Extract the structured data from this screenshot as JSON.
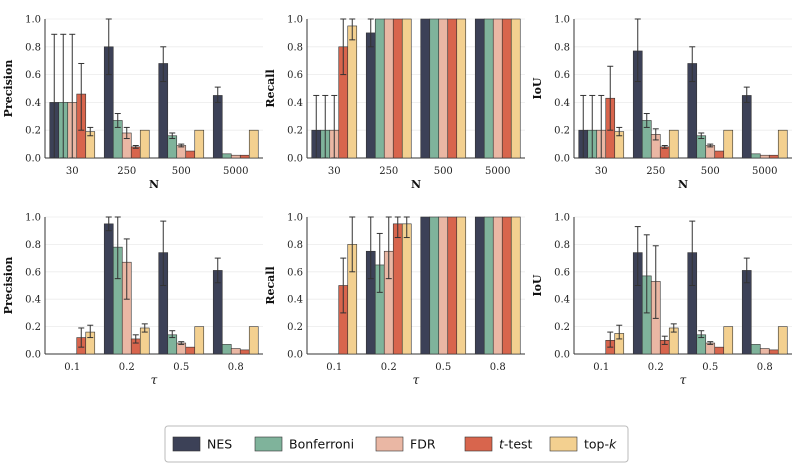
{
  "colors": {
    "NES": "#3c4157",
    "Bonferroni": "#7fb39b",
    "FDR": "#eab7a4",
    "t-test": "#d8654d",
    "top-k": "#f3d090"
  },
  "legend": [
    {
      "key": "NES",
      "label": "NES"
    },
    {
      "key": "Bonferroni",
      "label": "Bonferroni"
    },
    {
      "key": "FDR",
      "label": "FDR"
    },
    {
      "key": "t-test",
      "label": "t",
      "suffix": "-test",
      "italic_prefix": true
    },
    {
      "key": "top-k",
      "label": "top-",
      "suffix": "k",
      "italic_suffix": true
    }
  ],
  "chart_data": [
    {
      "type": "bar",
      "ylabel": "Precision",
      "xlabel": "N",
      "categories": [
        "30",
        "250",
        "500",
        "5000"
      ],
      "ylim": [
        0,
        1
      ],
      "yticks": [
        "0.0",
        "0.2",
        "0.4",
        "0.6",
        "0.8",
        "1.0"
      ],
      "series": [
        {
          "name": "NES",
          "values": [
            0.4,
            0.8,
            0.68,
            0.45
          ],
          "err_low": [
            0.0,
            0.6,
            0.55,
            0.4
          ],
          "err_high": [
            0.89,
            1.0,
            0.8,
            0.51
          ]
        },
        {
          "name": "Bonferroni",
          "values": [
            0.4,
            0.27,
            0.16,
            0.03
          ],
          "err_low": [
            0.0,
            0.22,
            0.14,
            null
          ],
          "err_high": [
            0.89,
            0.32,
            0.18,
            null
          ]
        },
        {
          "name": "FDR",
          "values": [
            0.4,
            0.18,
            0.09,
            0.02
          ],
          "err_low": [
            0.0,
            0.14,
            0.08,
            null
          ],
          "err_high": [
            0.89,
            0.22,
            0.1,
            null
          ]
        },
        {
          "name": "t-test",
          "values": [
            0.46,
            0.08,
            0.05,
            0.02
          ],
          "err_low": [
            0.2,
            0.07,
            null,
            null
          ],
          "err_high": [
            0.68,
            0.09,
            null,
            null
          ]
        },
        {
          "name": "top-k",
          "values": [
            0.19,
            0.2,
            0.2,
            0.2
          ],
          "err_low": [
            0.16,
            null,
            null,
            null
          ],
          "err_high": [
            0.22,
            null,
            null,
            null
          ]
        }
      ]
    },
    {
      "type": "bar",
      "ylabel": "Recall",
      "xlabel": "N",
      "categories": [
        "30",
        "250",
        "500",
        "5000"
      ],
      "ylim": [
        0,
        1
      ],
      "yticks": [
        "0.0",
        "0.2",
        "0.4",
        "0.6",
        "0.8",
        "1.0"
      ],
      "series": [
        {
          "name": "NES",
          "values": [
            0.2,
            0.9,
            1.0,
            1.0
          ],
          "err_low": [
            0.0,
            0.8,
            null,
            null
          ],
          "err_high": [
            0.45,
            1.0,
            null,
            null
          ]
        },
        {
          "name": "Bonferroni",
          "values": [
            0.2,
            1.0,
            1.0,
            1.0
          ],
          "err_low": [
            0.0,
            null,
            null,
            null
          ],
          "err_high": [
            0.45,
            null,
            null,
            null
          ]
        },
        {
          "name": "FDR",
          "values": [
            0.2,
            1.0,
            1.0,
            1.0
          ],
          "err_low": [
            0.0,
            null,
            null,
            null
          ],
          "err_high": [
            0.45,
            null,
            null,
            null
          ]
        },
        {
          "name": "t-test",
          "values": [
            0.8,
            1.0,
            1.0,
            1.0
          ],
          "err_low": [
            0.6,
            null,
            null,
            null
          ],
          "err_high": [
            1.0,
            null,
            null,
            null
          ]
        },
        {
          "name": "top-k",
          "values": [
            0.95,
            1.0,
            1.0,
            1.0
          ],
          "err_low": [
            0.85,
            null,
            null,
            null
          ],
          "err_high": [
            1.0,
            null,
            null,
            null
          ]
        }
      ]
    },
    {
      "type": "bar",
      "ylabel": "IoU",
      "xlabel": "N",
      "categories": [
        "30",
        "250",
        "500",
        "5000"
      ],
      "ylim": [
        0,
        1
      ],
      "yticks": [
        "0.0",
        "0.2",
        "0.4",
        "0.6",
        "0.8",
        "1.0"
      ],
      "series": [
        {
          "name": "NES",
          "values": [
            0.2,
            0.77,
            0.68,
            0.45
          ],
          "err_low": [
            0.0,
            0.55,
            0.55,
            0.4
          ],
          "err_high": [
            0.45,
            1.0,
            0.8,
            0.51
          ]
        },
        {
          "name": "Bonferroni",
          "values": [
            0.2,
            0.27,
            0.16,
            0.03
          ],
          "err_low": [
            0.0,
            0.22,
            0.14,
            null
          ],
          "err_high": [
            0.45,
            0.32,
            0.18,
            null
          ]
        },
        {
          "name": "FDR",
          "values": [
            0.2,
            0.17,
            0.09,
            0.02
          ],
          "err_low": [
            0.0,
            0.13,
            0.08,
            null
          ],
          "err_high": [
            0.45,
            0.21,
            0.1,
            null
          ]
        },
        {
          "name": "t-test",
          "values": [
            0.43,
            0.08,
            0.05,
            0.02
          ],
          "err_low": [
            0.2,
            0.07,
            null,
            null
          ],
          "err_high": [
            0.66,
            0.09,
            null,
            null
          ]
        },
        {
          "name": "top-k",
          "values": [
            0.19,
            0.2,
            0.2,
            0.2
          ],
          "err_low": [
            0.16,
            null,
            null,
            null
          ],
          "err_high": [
            0.22,
            null,
            null,
            null
          ]
        }
      ]
    },
    {
      "type": "bar",
      "ylabel": "Precision",
      "xlabel": "τ",
      "categories": [
        "0.1",
        "0.2",
        "0.5",
        "0.8"
      ],
      "ylim": [
        0,
        1
      ],
      "yticks": [
        "0.0",
        "0.2",
        "0.4",
        "0.6",
        "0.8",
        "1.0"
      ],
      "series": [
        {
          "name": "NES",
          "values": [
            0.0,
            0.95,
            0.74,
            0.61
          ],
          "err_low": [
            null,
            0.9,
            0.5,
            0.52
          ],
          "err_high": [
            null,
            1.0,
            0.97,
            0.7
          ]
        },
        {
          "name": "Bonferroni",
          "values": [
            0.0,
            0.78,
            0.14,
            0.07
          ],
          "err_low": [
            null,
            0.55,
            0.12,
            null
          ],
          "err_high": [
            null,
            1.0,
            0.17,
            null
          ]
        },
        {
          "name": "FDR",
          "values": [
            0.0,
            0.67,
            0.08,
            0.04
          ],
          "err_low": [
            null,
            0.4,
            0.07,
            null
          ],
          "err_high": [
            null,
            0.84,
            0.09,
            null
          ]
        },
        {
          "name": "t-test",
          "values": [
            0.12,
            0.11,
            0.05,
            0.03
          ],
          "err_low": [
            0.05,
            0.08,
            null,
            null
          ],
          "err_high": [
            0.19,
            0.14,
            null,
            null
          ]
        },
        {
          "name": "top-k",
          "values": [
            0.16,
            0.19,
            0.2,
            0.2
          ],
          "err_low": [
            0.12,
            0.16,
            null,
            null
          ],
          "err_high": [
            0.21,
            0.22,
            null,
            null
          ]
        }
      ]
    },
    {
      "type": "bar",
      "ylabel": "Recall",
      "xlabel": "τ",
      "categories": [
        "0.1",
        "0.2",
        "0.5",
        "0.8"
      ],
      "ylim": [
        0,
        1
      ],
      "yticks": [
        "0.0",
        "0.2",
        "0.4",
        "0.6",
        "0.8",
        "1.0"
      ],
      "series": [
        {
          "name": "NES",
          "values": [
            0.0,
            0.75,
            1.0,
            1.0
          ],
          "err_low": [
            null,
            0.55,
            null,
            null
          ],
          "err_high": [
            null,
            1.0,
            null,
            null
          ]
        },
        {
          "name": "Bonferroni",
          "values": [
            0.0,
            0.65,
            1.0,
            1.0
          ],
          "err_low": [
            null,
            0.45,
            null,
            null
          ],
          "err_high": [
            null,
            0.88,
            null,
            null
          ]
        },
        {
          "name": "FDR",
          "values": [
            0.0,
            0.75,
            1.0,
            1.0
          ],
          "err_low": [
            null,
            0.55,
            null,
            null
          ],
          "err_high": [
            null,
            1.0,
            null,
            null
          ]
        },
        {
          "name": "t-test",
          "values": [
            0.5,
            0.95,
            1.0,
            1.0
          ],
          "err_low": [
            0.3,
            0.85,
            null,
            null
          ],
          "err_high": [
            0.7,
            1.0,
            null,
            null
          ]
        },
        {
          "name": "top-k",
          "values": [
            0.8,
            0.95,
            1.0,
            1.0
          ],
          "err_low": [
            0.6,
            0.85,
            null,
            null
          ],
          "err_high": [
            1.0,
            1.0,
            null,
            null
          ]
        }
      ]
    },
    {
      "type": "bar",
      "ylabel": "IoU",
      "xlabel": "τ",
      "categories": [
        "0.1",
        "0.2",
        "0.5",
        "0.8"
      ],
      "ylim": [
        0,
        1
      ],
      "yticks": [
        "0.0",
        "0.2",
        "0.4",
        "0.6",
        "0.8",
        "1.0"
      ],
      "series": [
        {
          "name": "NES",
          "values": [
            0.0,
            0.74,
            0.74,
            0.61
          ],
          "err_low": [
            null,
            0.5,
            0.5,
            0.52
          ],
          "err_high": [
            null,
            0.93,
            0.97,
            0.7
          ]
        },
        {
          "name": "Bonferroni",
          "values": [
            0.0,
            0.57,
            0.14,
            0.07
          ],
          "err_low": [
            null,
            0.3,
            0.12,
            null
          ],
          "err_high": [
            null,
            0.87,
            0.17,
            null
          ]
        },
        {
          "name": "FDR",
          "values": [
            0.0,
            0.53,
            0.08,
            0.04
          ],
          "err_low": [
            null,
            0.26,
            0.07,
            null
          ],
          "err_high": [
            null,
            0.79,
            0.09,
            null
          ]
        },
        {
          "name": "t-test",
          "values": [
            0.1,
            0.1,
            0.05,
            0.03
          ],
          "err_low": [
            0.05,
            0.07,
            null,
            null
          ],
          "err_high": [
            0.16,
            0.13,
            null,
            null
          ]
        },
        {
          "name": "top-k",
          "values": [
            0.15,
            0.19,
            0.2,
            0.2
          ],
          "err_low": [
            0.11,
            0.16,
            null,
            null
          ],
          "err_high": [
            0.21,
            0.22,
            null,
            null
          ]
        }
      ]
    }
  ]
}
